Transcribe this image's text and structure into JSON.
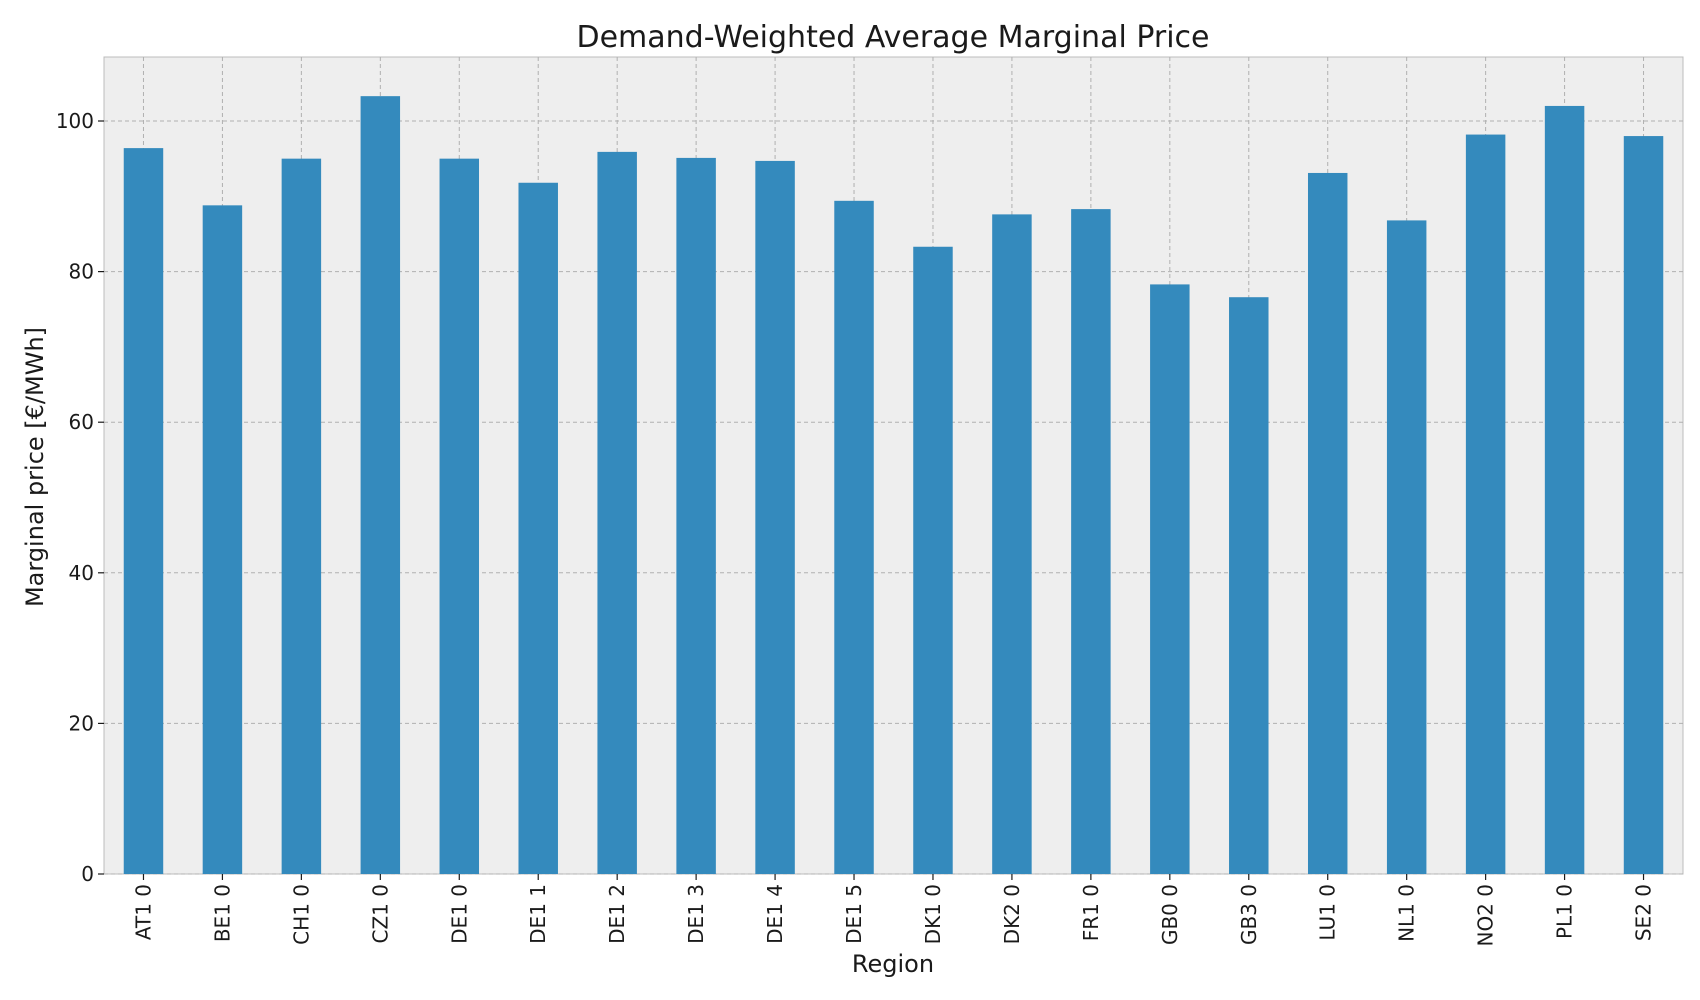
{
  "chart_data": {
    "type": "bar",
    "title": "Demand-Weighted Average Marginal Price",
    "xlabel": "Region",
    "ylabel": "Marginal price [€/MWh]",
    "ylim": [
      0,
      108.5
    ],
    "yticks": [
      0,
      20,
      40,
      60,
      80,
      100
    ],
    "grid": true,
    "categories": [
      "AT1 0",
      "BE1 0",
      "CH1 0",
      "CZ1 0",
      "DE1 0",
      "DE1 1",
      "DE1 2",
      "DE1 3",
      "DE1 4",
      "DE1 5",
      "DK1 0",
      "DK2 0",
      "FR1 0",
      "GB0 0",
      "GB3 0",
      "LU1 0",
      "NL1 0",
      "NO2 0",
      "PL1 0",
      "SE2 0"
    ],
    "values": [
      96.4,
      88.8,
      95.0,
      103.3,
      95.0,
      91.8,
      95.9,
      95.1,
      94.7,
      89.4,
      83.3,
      87.6,
      88.3,
      78.3,
      76.6,
      93.1,
      86.8,
      98.2,
      102.0,
      98.0
    ],
    "colors": {
      "bar": "#348abd",
      "background": "#eeeeee"
    }
  }
}
